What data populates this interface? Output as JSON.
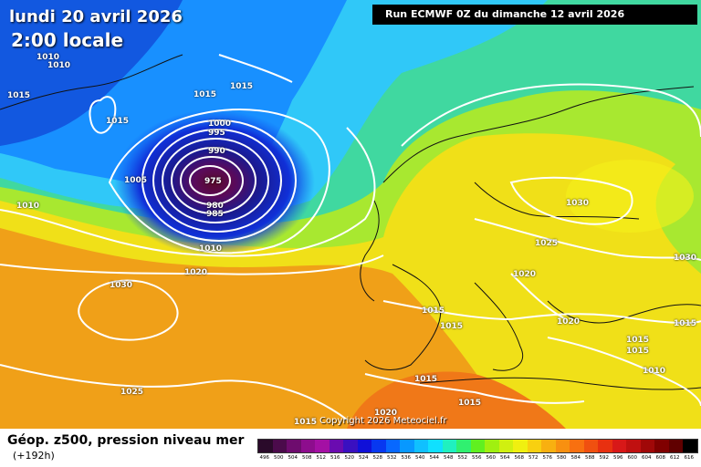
{
  "header": {
    "date_line": "lundi 20 avril 2026",
    "time_line": "2:00 locale",
    "run_label": "Run ECMWF 0Z du dimanche 12 avril 2026"
  },
  "footer": {
    "title": "Géop. z500, pression niveau mer",
    "subtitle": "(+192h)",
    "copyright": "Copyright 2026 Meteociel.fr"
  },
  "isobar_labels": [
    "1010",
    "1010",
    "1015",
    "1015",
    "1015",
    "1015",
    "1000",
    "995",
    "990",
    "975",
    "980",
    "985",
    "1005",
    "1010",
    "1010",
    "1020",
    "1030",
    "1025",
    "1030",
    "1025",
    "1020",
    "1030",
    "1015",
    "1015",
    "1020",
    "1015",
    "1015",
    "1015",
    "1010",
    "1015",
    "1020",
    "1015",
    "1015"
  ],
  "scale": {
    "labels": [
      "496",
      "500",
      "504",
      "508",
      "512",
      "516",
      "520",
      "524",
      "528",
      "532",
      "536",
      "540",
      "544",
      "548",
      "552",
      "556",
      "560",
      "564",
      "568",
      "572",
      "576",
      "580",
      "584",
      "588",
      "592",
      "596",
      "600",
      "604",
      "608",
      "612",
      "616"
    ],
    "colors": [
      "#2a0a2a",
      "#4b0b4b",
      "#6e0c6e",
      "#8d0d8d",
      "#a410a4",
      "#6a0bb0",
      "#3a10c0",
      "#1010d8",
      "#0838f0",
      "#0868ff",
      "#0898ff",
      "#10c0ff",
      "#10e0ff",
      "#20f0c0",
      "#30f070",
      "#60f020",
      "#a0f010",
      "#d0f010",
      "#f0f010",
      "#f8d010",
      "#f8b010",
      "#f89010",
      "#f87010",
      "#f05010",
      "#e83010",
      "#d81818",
      "#c01010",
      "#a00808",
      "#800000",
      "#600000",
      "#000000"
    ]
  },
  "colors": {
    "low_center": "#6a0b3a",
    "ocean_blue": "#1e78ff",
    "cyan": "#3cd0ff",
    "green": "#78e040",
    "yellow": "#f5f01a",
    "orange": "#f08a14"
  }
}
